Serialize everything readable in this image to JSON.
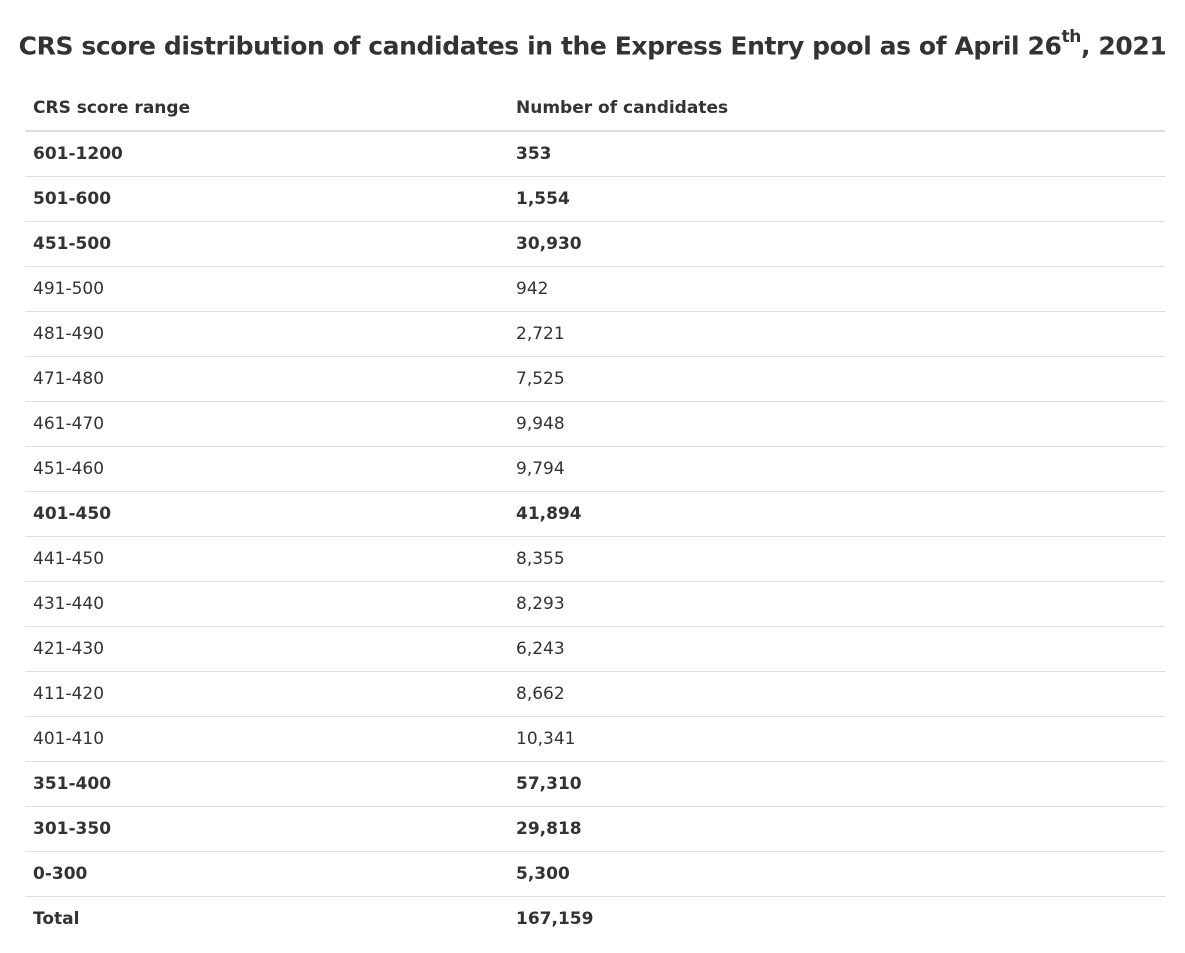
{
  "caption": {
    "text": "CRS score distribution of candidates in the Express Entry pool as of April 26",
    "superscript": "th",
    "suffix": ", 2021"
  },
  "table": {
    "headers": [
      "CRS score range",
      "Number of candidates"
    ],
    "rows": [
      {
        "range": "601-1200",
        "count": "353",
        "bold": true
      },
      {
        "range": "501-600",
        "count": "1,554",
        "bold": true
      },
      {
        "range": "451-500",
        "count": "30,930",
        "bold": true
      },
      {
        "range": "491-500",
        "count": "942",
        "bold": false
      },
      {
        "range": "481-490",
        "count": "2,721",
        "bold": false
      },
      {
        "range": "471-480",
        "count": "7,525",
        "bold": false
      },
      {
        "range": "461-470",
        "count": "9,948",
        "bold": false
      },
      {
        "range": "451-460",
        "count": "9,794",
        "bold": false
      },
      {
        "range": "401-450",
        "count": "41,894",
        "bold": true
      },
      {
        "range": "441-450",
        "count": "8,355",
        "bold": false
      },
      {
        "range": "431-440",
        "count": "8,293",
        "bold": false
      },
      {
        "range": "421-430",
        "count": "6,243",
        "bold": false
      },
      {
        "range": "411-420",
        "count": "8,662",
        "bold": false
      },
      {
        "range": "401-410",
        "count": "10,341",
        "bold": false
      },
      {
        "range": "351-400",
        "count": "57,310",
        "bold": true
      },
      {
        "range": "301-350",
        "count": "29,818",
        "bold": true
      },
      {
        "range": "0-300",
        "count": "5,300",
        "bold": true
      },
      {
        "range": "Total",
        "count": "167,159",
        "bold": true
      }
    ]
  }
}
